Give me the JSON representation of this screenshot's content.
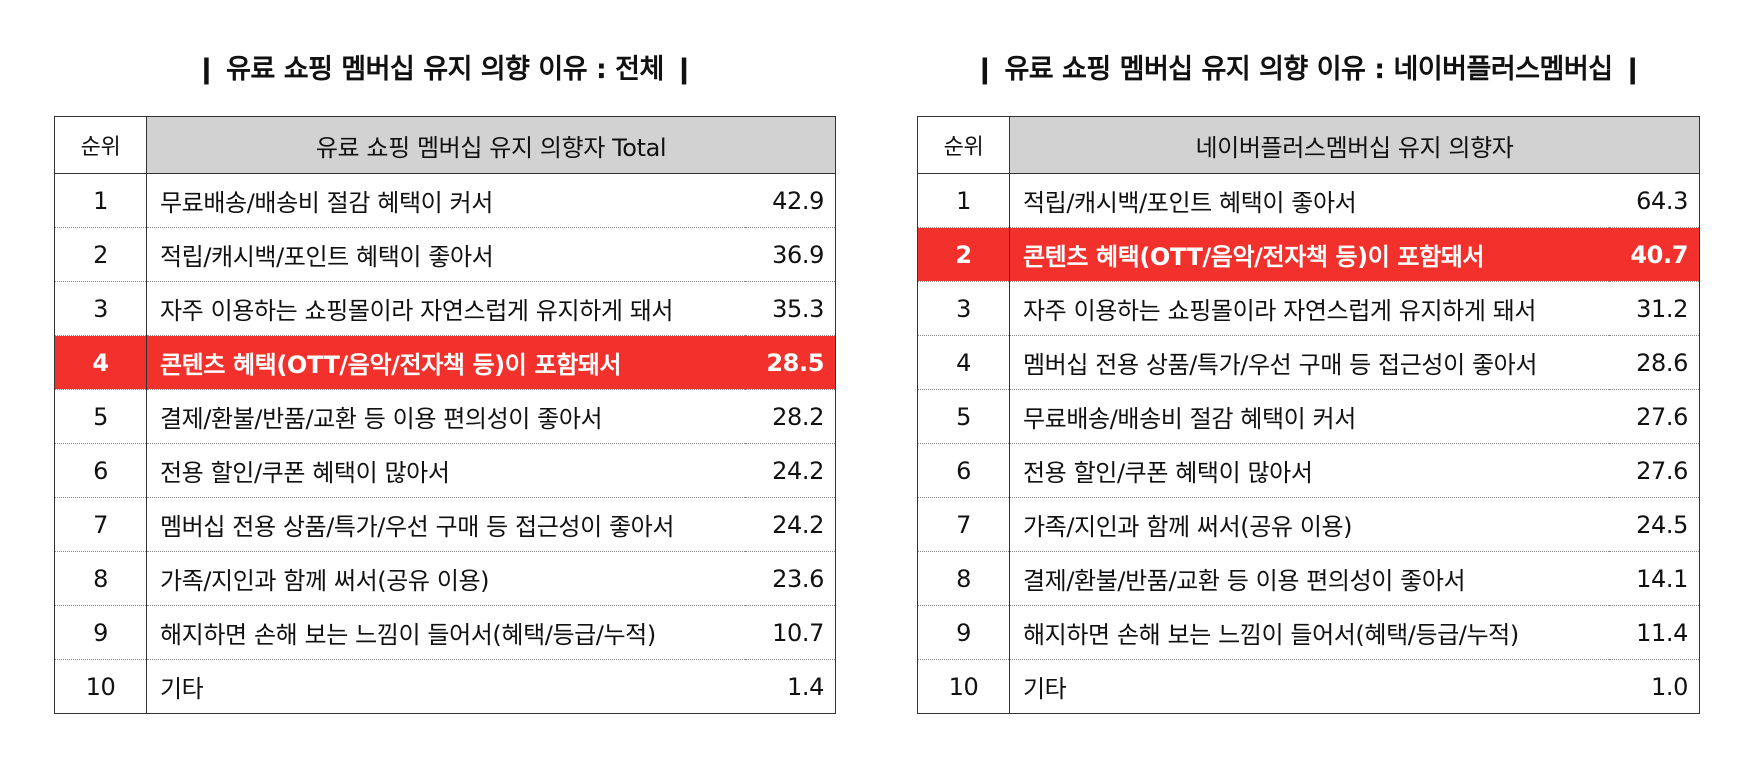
{
  "left_panel": {
    "title": "❙ 유료 쇼핑 멤버십 유지 의향 이유 : 전체 ❙",
    "header_rank": "순위",
    "header_label": "유료 쇼핑 멤버십 유지 의향자 Total",
    "highlight_color": "#f2312c",
    "rows": [
      {
        "rank": "1",
        "label": "무료배송/배송비 절감 혜택이 커서",
        "value": "42.9",
        "highlight": false
      },
      {
        "rank": "2",
        "label": "적립/캐시백/포인트 혜택이 좋아서",
        "value": "36.9",
        "highlight": false
      },
      {
        "rank": "3",
        "label": "자주 이용하는 쇼핑몰이라 자연스럽게 유지하게 돼서",
        "value": "35.3",
        "highlight": false
      },
      {
        "rank": "4",
        "label": "콘텐츠 혜택(OTT/음악/전자책 등)이 포함돼서",
        "value": "28.5",
        "highlight": true
      },
      {
        "rank": "5",
        "label": "결제/환불/반품/교환 등 이용 편의성이 좋아서",
        "value": "28.2",
        "highlight": false
      },
      {
        "rank": "6",
        "label": "전용 할인/쿠폰 혜택이 많아서",
        "value": "24.2",
        "highlight": false
      },
      {
        "rank": "7",
        "label": "멤버십 전용 상품/특가/우선 구매 등 접근성이 좋아서",
        "value": "24.2",
        "highlight": false
      },
      {
        "rank": "8",
        "label": "가족/지인과 함께 써서(공유 이용)",
        "value": "23.6",
        "highlight": false
      },
      {
        "rank": "9",
        "label": "해지하면 손해 보는 느낌이 들어서(혜택/등급/누적)",
        "value": "10.7",
        "highlight": false
      },
      {
        "rank": "10",
        "label": "기타",
        "value": "1.4",
        "highlight": false
      }
    ]
  },
  "right_panel": {
    "title": "❙ 유료 쇼핑 멤버십 유지 의향 이유 : 네이버플러스멤버십 ❙",
    "header_rank": "순위",
    "header_label": "네이버플러스멤버십 유지 의향자",
    "highlight_color": "#f2312c",
    "rows": [
      {
        "rank": "1",
        "label": "적립/캐시백/포인트 혜택이 좋아서",
        "value": "64.3",
        "highlight": false
      },
      {
        "rank": "2",
        "label": "콘텐츠 혜택(OTT/음악/전자책 등)이 포함돼서",
        "value": "40.7",
        "highlight": true
      },
      {
        "rank": "3",
        "label": "자주 이용하는 쇼핑몰이라 자연스럽게 유지하게 돼서",
        "value": "31.2",
        "highlight": false
      },
      {
        "rank": "4",
        "label": "멤버십 전용 상품/특가/우선 구매 등 접근성이 좋아서",
        "value": "28.6",
        "highlight": false
      },
      {
        "rank": "5",
        "label": "무료배송/배송비 절감 혜택이 커서",
        "value": "27.6",
        "highlight": false
      },
      {
        "rank": "6",
        "label": "전용 할인/쿠폰 혜택이 많아서",
        "value": "27.6",
        "highlight": false
      },
      {
        "rank": "7",
        "label": "가족/지인과 함께 써서(공유 이용)",
        "value": "24.5",
        "highlight": false
      },
      {
        "rank": "8",
        "label": "결제/환불/반품/교환 등 이용 편의성이 좋아서",
        "value": "14.1",
        "highlight": false
      },
      {
        "rank": "9",
        "label": "해지하면 손해 보는 느낌이 들어서(혜택/등급/누적)",
        "value": "11.4",
        "highlight": false
      },
      {
        "rank": "10",
        "label": "기타",
        "value": "1.0",
        "highlight": false
      }
    ]
  }
}
